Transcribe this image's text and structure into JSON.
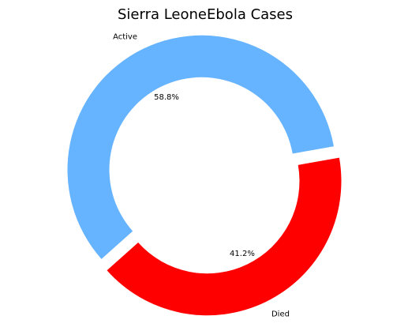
{
  "chart_data": {
    "type": "pie",
    "variant": "donut",
    "title": "Sierra LeoneEbola  Cases",
    "slices": [
      {
        "label": "Active",
        "value": 58.8,
        "pct_label": "58.8%",
        "color": "#66b3ff"
      },
      {
        "label": "Died",
        "value": 41.2,
        "pct_label": "41.2%",
        "color": "#ff0000"
      }
    ]
  }
}
